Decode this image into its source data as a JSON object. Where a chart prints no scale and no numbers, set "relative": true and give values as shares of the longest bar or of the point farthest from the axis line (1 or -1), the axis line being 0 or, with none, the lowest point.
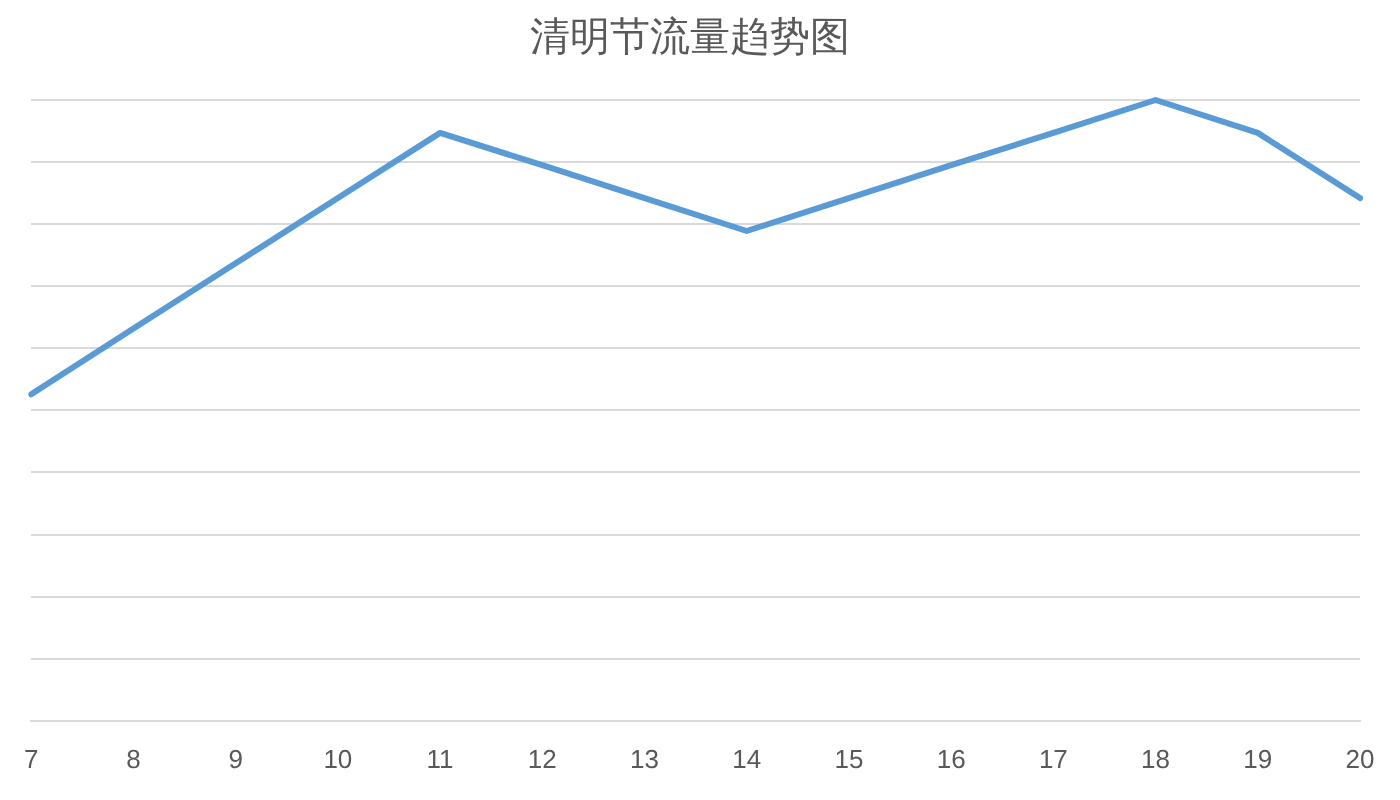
{
  "chart_data": {
    "type": "line",
    "title": "清明节流量趋势图",
    "categories": [
      "7",
      "8",
      "9",
      "10",
      "11",
      "12",
      "13",
      "14",
      "15",
      "16",
      "17",
      "18",
      "19",
      "20"
    ],
    "series": [
      {
        "color": "#5b9bd5",
        "values": [
          0.526,
          0.632,
          0.737,
          0.842,
          0.947,
          0.895,
          0.842,
          0.789,
          0.842,
          0.895,
          0.947,
          1,
          0.947,
          0.842
        ]
      }
    ],
    "relative": true,
    "grid": "y",
    "legend": false,
    "marker": "none",
    "line_style": "solid"
  }
}
